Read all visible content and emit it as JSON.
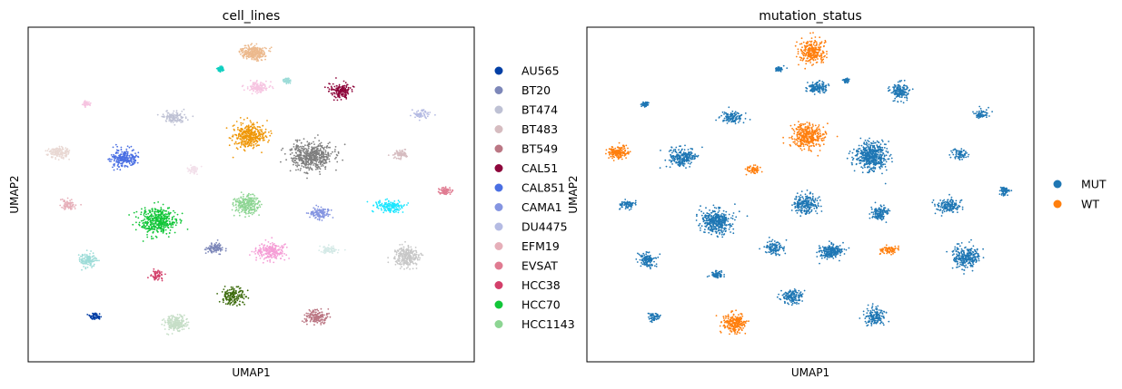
{
  "chart_data": [
    {
      "type": "scatter",
      "title": "cell_lines",
      "xlabel": "UMAP1",
      "ylabel": "UMAP2",
      "xlim": [
        0,
        100
      ],
      "ylim": [
        0,
        100
      ],
      "grid": false,
      "ticks": false,
      "legend": "right",
      "clusters": [
        {
          "label": "AU565",
          "color": "#023fa5",
          "x": [
            15.0
          ],
          "y": [
            13.5
          ]
        },
        {
          "label": "BT20",
          "color": "#7d87b9",
          "x": [
            42.0
          ],
          "y": [
            34.0
          ]
        },
        {
          "label": "BT474",
          "color": "#bec1d4",
          "x": [
            32.5,
            33.5
          ],
          "y": [
            73.0,
            79.0
          ]
        },
        {
          "label": "BT483",
          "color": "#d6bcc0",
          "x": [
            83.5
          ],
          "y": [
            62.0
          ]
        },
        {
          "label": "BT549",
          "color": "#bb7784",
          "x": [
            64.5
          ],
          "y": [
            13.5
          ]
        },
        {
          "label": "CAL51",
          "color": "#8e063b",
          "x": [
            70.0
          ],
          "y": [
            81.0
          ]
        },
        {
          "label": "CAL851",
          "color": "#4a6fe3",
          "x": [
            21.5
          ],
          "y": [
            61.0
          ]
        },
        {
          "label": "CAMA1",
          "color": "#8595e1",
          "x": [
            65.5
          ],
          "y": [
            44.5
          ]
        },
        {
          "label": "DU4475",
          "color": "#b5bbe3",
          "x": [
            88.0
          ],
          "y": [
            74.0
          ]
        },
        {
          "label": "EFM19",
          "color": "#e6afb9",
          "x": [
            9.0
          ],
          "y": [
            47.0
          ]
        },
        {
          "label": "EVSAT",
          "color": "#e07b91",
          "x": [
            93.5
          ],
          "y": [
            51.0
          ]
        },
        {
          "label": "HCC38",
          "color": "#d33f6a",
          "x": [
            29.0
          ],
          "y": [
            26.0
          ]
        },
        {
          "label": "HCC70",
          "color": "#11c638",
          "x": [
            29.0
          ],
          "y": [
            42.0
          ]
        },
        {
          "label": "HCC1143",
          "color": "#8dd593",
          "x": [
            49.0
          ],
          "y": [
            47.0
          ]
        },
        {
          "label": "",
          "color": "#ecb98d",
          "x": [
            50.5
          ],
          "y": [
            92.5
          ]
        },
        {
          "label": "",
          "color": "#ef9708",
          "x": [
            49.5
          ],
          "y": [
            67.5
          ]
        },
        {
          "label": "",
          "color": "#7f7f7f",
          "x": [
            63.5
          ],
          "y": [
            61.5
          ]
        },
        {
          "label": "",
          "color": "#3c6b0c",
          "x": [
            46.0
          ],
          "y": [
            19.5
          ]
        },
        {
          "label": "",
          "color": "#c6dec7",
          "x": [
            33.0
          ],
          "y": [
            11.5
          ]
        },
        {
          "label": "",
          "color": "#f59ed6",
          "x": [
            54.5
          ],
          "y": [
            33.0
          ]
        },
        {
          "label": "",
          "color": "#d5eae7",
          "x": [
            67.5
          ],
          "y": [
            33.5
          ]
        },
        {
          "label": "",
          "color": "#c7c7c7",
          "x": [
            85.0
          ],
          "y": [
            31.5
          ]
        },
        {
          "label": "",
          "color": "#9ddcd8",
          "x": [
            13.5
          ],
          "y": [
            30.5
          ]
        },
        {
          "label": "",
          "color": "#0fcfc0",
          "x": [
            43.0
          ],
          "y": [
            87.5
          ]
        },
        {
          "label": "",
          "color": "#f6c4e1",
          "x": [
            51.5
          ],
          "y": [
            82.0
          ]
        },
        {
          "label": "",
          "color": "#9ddcd8",
          "x": [
            58.0
          ],
          "y": [
            84.0
          ]
        },
        {
          "label": "",
          "color": "#e9d8d3",
          "x": [
            7.0
          ],
          "y": [
            62.5
          ]
        },
        {
          "label": "",
          "color": "#f3e1eb",
          "x": [
            37.0
          ],
          "y": [
            57.5
          ]
        },
        {
          "label": "",
          "color": "#1ce6ff",
          "x": [
            81.0
          ],
          "y": [
            46.5
          ]
        },
        {
          "label": "",
          "color": "#f6c4e1",
          "x": [
            13.0
          ],
          "y": [
            77.0
          ]
        }
      ]
    },
    {
      "type": "scatter",
      "title": "mutation_status",
      "xlabel": "UMAP1",
      "ylabel": "UMAP2",
      "xlim": [
        0,
        100
      ],
      "ylim": [
        0,
        100
      ],
      "grid": false,
      "ticks": false,
      "legend": "right",
      "series": [
        {
          "name": "MUT",
          "color": "#1f77b4"
        },
        {
          "name": "WT",
          "color": "#ff7f0e"
        }
      ]
    }
  ]
}
